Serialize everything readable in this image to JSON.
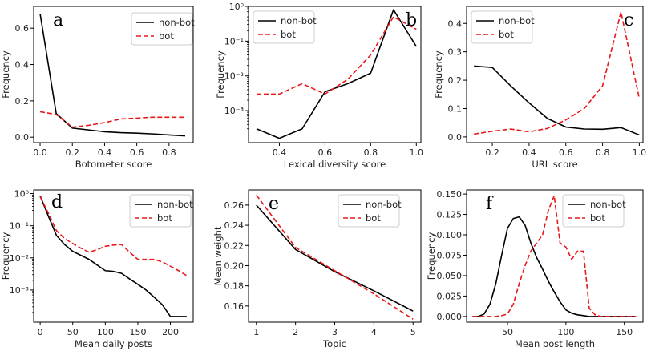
{
  "chart_data": [
    {
      "id": "a",
      "type": "line",
      "letter": "a",
      "xlabel": "Botometer score",
      "ylabel": "Frequency",
      "xscale": "linear",
      "yscale": "linear",
      "xlim": [
        -0.04,
        0.95
      ],
      "ylim": [
        -0.03,
        0.72
      ],
      "xticks": [
        0.0,
        0.2,
        0.4,
        0.6,
        0.8
      ],
      "xtick_labels": [
        "0.0",
        "0.2",
        "0.4",
        "0.6",
        "0.8"
      ],
      "yticks": [
        0.0,
        0.2,
        0.4,
        0.6
      ],
      "ytick_labels": [
        "0.0",
        "0.2",
        "0.4",
        "0.6"
      ],
      "legend_position": "top-right",
      "series": [
        {
          "name": "non-bot",
          "style": "solid",
          "color": "#000000",
          "x": [
            0.0,
            0.1,
            0.2,
            0.3,
            0.4,
            0.5,
            0.6,
            0.7,
            0.8,
            0.9
          ],
          "y": [
            0.68,
            0.13,
            0.05,
            0.04,
            0.03,
            0.025,
            0.022,
            0.018,
            0.012,
            0.007
          ]
        },
        {
          "name": "bot",
          "style": "dashed",
          "color": "#e8191a",
          "x": [
            0.0,
            0.1,
            0.2,
            0.3,
            0.4,
            0.5,
            0.6,
            0.7,
            0.8,
            0.9
          ],
          "y": [
            0.14,
            0.125,
            0.055,
            0.065,
            0.08,
            0.1,
            0.105,
            0.11,
            0.11,
            0.11
          ]
        }
      ]
    },
    {
      "id": "b",
      "type": "line",
      "letter": "b",
      "xlabel": "Lexical diversity score",
      "ylabel": "Frequency",
      "xscale": "linear",
      "yscale": "log",
      "xlim": [
        0.265,
        1.02
      ],
      "ylim": [
        0.00012,
        1.0
      ],
      "xticks": [
        0.4,
        0.6,
        0.8,
        1.0
      ],
      "xtick_labels": [
        "0.4",
        "0.6",
        "0.8",
        "1.0"
      ],
      "yticks": [
        0.001,
        0.01,
        0.1,
        1.0
      ],
      "ytick_labels": [
        "10⁻³",
        "10⁻²",
        "10⁻¹",
        "10⁰"
      ],
      "legend_position": "top-left",
      "series": [
        {
          "name": "non-bot",
          "style": "solid",
          "color": "#000000",
          "x": [
            0.3,
            0.4,
            0.5,
            0.6,
            0.7,
            0.8,
            0.9,
            1.0
          ],
          "y": [
            0.0003,
            0.00016,
            0.0003,
            0.0035,
            0.006,
            0.012,
            0.8,
            0.07
          ]
        },
        {
          "name": "bot",
          "style": "dashed",
          "color": "#e8191a",
          "x": [
            0.3,
            0.4,
            0.5,
            0.6,
            0.7,
            0.8,
            0.9,
            1.0
          ],
          "y": [
            0.003,
            0.003,
            0.006,
            0.003,
            0.008,
            0.04,
            0.5,
            0.22
          ]
        }
      ]
    },
    {
      "id": "c",
      "type": "line",
      "letter": "c",
      "xlabel": "URL score",
      "ylabel": "Frequency",
      "xscale": "linear",
      "yscale": "linear",
      "xlim": [
        0.06,
        1.02
      ],
      "ylim": [
        -0.02,
        0.46
      ],
      "xticks": [
        0.2,
        0.4,
        0.6,
        0.8,
        1.0
      ],
      "xtick_labels": [
        "0.2",
        "0.4",
        "0.6",
        "0.8",
        "1.0"
      ],
      "yticks": [
        0.0,
        0.1,
        0.2,
        0.3,
        0.4
      ],
      "ytick_labels": [
        "0.0",
        "0.1",
        "0.2",
        "0.3",
        "0.4"
      ],
      "legend_position": "top-left",
      "series": [
        {
          "name": "non-bot",
          "style": "solid",
          "color": "#000000",
          "x": [
            0.1,
            0.2,
            0.3,
            0.4,
            0.5,
            0.6,
            0.7,
            0.8,
            0.9,
            1.0
          ],
          "y": [
            0.25,
            0.245,
            0.18,
            0.12,
            0.065,
            0.035,
            0.028,
            0.027,
            0.033,
            0.007
          ]
        },
        {
          "name": "bot",
          "style": "dashed",
          "color": "#e8191a",
          "x": [
            0.1,
            0.2,
            0.3,
            0.4,
            0.5,
            0.6,
            0.7,
            0.8,
            0.9,
            1.0
          ],
          "y": [
            0.01,
            0.02,
            0.028,
            0.018,
            0.03,
            0.06,
            0.1,
            0.18,
            0.44,
            0.135
          ]
        }
      ]
    },
    {
      "id": "d",
      "type": "line",
      "letter": "d",
      "xlabel": "Mean daily posts",
      "ylabel": "Frequency",
      "xscale": "linear",
      "yscale": "log",
      "xlim": [
        -10,
        235
      ],
      "ylim": [
        0.0001,
        1.3
      ],
      "xticks": [
        0,
        50,
        100,
        150,
        200
      ],
      "xtick_labels": [
        "0",
        "50",
        "100",
        "150",
        "200"
      ],
      "yticks": [
        0.001,
        0.01,
        0.1,
        1.0
      ],
      "ytick_labels": [
        "10⁻³",
        "10⁻²",
        "10⁻¹",
        "10⁰"
      ],
      "legend_position": "top-right",
      "series": [
        {
          "name": "non-bot",
          "style": "solid",
          "color": "#000000",
          "x": [
            0,
            12.5,
            25,
            37.5,
            50,
            62.5,
            75,
            87.5,
            100,
            112.5,
            125,
            137.5,
            150,
            162.5,
            175,
            187.5,
            200,
            212.5,
            225
          ],
          "y": [
            0.85,
            0.2,
            0.05,
            0.026,
            0.016,
            0.012,
            0.009,
            0.006,
            0.004,
            0.0038,
            0.0033,
            0.0022,
            0.0015,
            0.001,
            0.0006,
            0.00035,
            0.00015,
            0.00015,
            0.00015
          ]
        },
        {
          "name": "bot",
          "style": "dashed",
          "color": "#e8191a",
          "x": [
            0,
            12.5,
            25,
            37.5,
            50,
            62.5,
            75,
            87.5,
            100,
            112.5,
            125,
            137.5,
            150,
            162.5,
            175,
            187.5,
            200,
            212.5,
            225
          ],
          "y": [
            0.8,
            0.25,
            0.07,
            0.04,
            0.028,
            0.02,
            0.015,
            0.018,
            0.023,
            0.025,
            0.026,
            0.015,
            0.009,
            0.009,
            0.009,
            0.0075,
            0.0055,
            0.004,
            0.0028
          ]
        }
      ]
    },
    {
      "id": "e",
      "type": "line",
      "letter": "e",
      "xlabel": "Topic",
      "ylabel": "Mean weight",
      "xscale": "linear",
      "yscale": "linear",
      "xlim": [
        0.8,
        5.2
      ],
      "ylim": [
        0.144,
        0.275
      ],
      "xticks": [
        1,
        2,
        3,
        4,
        5
      ],
      "xtick_labels": [
        "1",
        "2",
        "3",
        "4",
        "5"
      ],
      "yticks": [
        0.16,
        0.18,
        0.2,
        0.22,
        0.24,
        0.26
      ],
      "ytick_labels": [
        "0.16",
        "0.18",
        "0.20",
        "0.22",
        "0.24",
        "0.26"
      ],
      "legend_position": "top-right",
      "series": [
        {
          "name": "non-bot",
          "style": "solid",
          "color": "#000000",
          "x": [
            1,
            2,
            3,
            4,
            5
          ],
          "y": [
            0.26,
            0.216,
            0.194,
            0.175,
            0.155
          ]
        },
        {
          "name": "bot",
          "style": "dashed",
          "color": "#e8191a",
          "x": [
            1,
            2,
            3,
            4,
            5
          ],
          "y": [
            0.27,
            0.218,
            0.195,
            0.172,
            0.147
          ]
        }
      ]
    },
    {
      "id": "f",
      "type": "line",
      "letter": "f",
      "xlabel": "Mean post length",
      "ylabel": "Frequency",
      "xscale": "linear",
      "yscale": "linear",
      "xlim": [
        15,
        166
      ],
      "ylim": [
        -0.007,
        0.155
      ],
      "xticks": [
        50,
        100,
        150
      ],
      "xtick_labels": [
        "50",
        "100",
        "150"
      ],
      "yticks": [
        0.0,
        0.025,
        0.05,
        0.075,
        0.1,
        0.125,
        0.15
      ],
      "ytick_labels": [
        "0.000",
        "0.025",
        "0.050",
        "0.075",
        "0.100",
        "0.125",
        "0.150"
      ],
      "legend_position": "top-right",
      "series": [
        {
          "name": "non-bot",
          "style": "solid",
          "color": "#000000",
          "x": [
            20,
            25,
            30,
            35,
            40,
            45,
            50,
            55,
            60,
            65,
            70,
            75,
            80,
            85,
            90,
            95,
            100,
            105,
            110,
            115,
            120,
            130,
            140,
            150,
            160
          ],
          "y": [
            0.0,
            0.0,
            0.003,
            0.015,
            0.04,
            0.075,
            0.108,
            0.12,
            0.122,
            0.112,
            0.09,
            0.072,
            0.058,
            0.043,
            0.03,
            0.018,
            0.008,
            0.004,
            0.002,
            0.001,
            0.0,
            0.0,
            0.0,
            0.0,
            0.0
          ]
        },
        {
          "name": "bot",
          "style": "dashed",
          "color": "#e8191a",
          "x": [
            20,
            30,
            40,
            45,
            50,
            55,
            60,
            65,
            70,
            75,
            80,
            85,
            90,
            95,
            100,
            105,
            110,
            115,
            120,
            125,
            130,
            140,
            150,
            160
          ],
          "y": [
            0.0,
            0.0,
            0.0,
            0.001,
            0.003,
            0.015,
            0.04,
            0.062,
            0.08,
            0.09,
            0.1,
            0.13,
            0.148,
            0.09,
            0.085,
            0.07,
            0.08,
            0.08,
            0.01,
            0.002,
            0.0,
            0.0,
            0.0,
            0.0
          ]
        }
      ]
    }
  ]
}
